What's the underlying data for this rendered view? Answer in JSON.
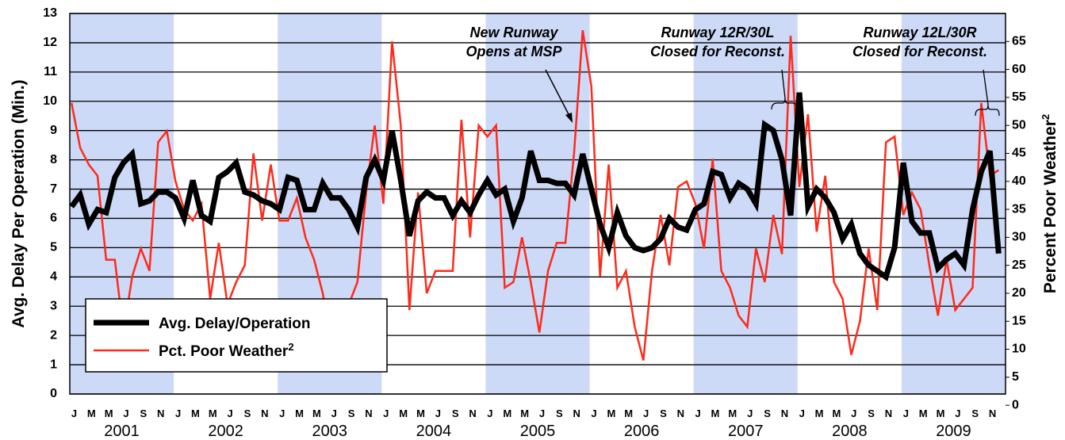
{
  "chart_data": {
    "type": "line",
    "y_label": "Avg. Delay Per Operation (Min.)",
    "y2_label": "Percent Poor Weather",
    "y2_label_sup": "2",
    "categories": [
      "J",
      null,
      "M",
      null,
      "M",
      null,
      "J",
      null,
      "S",
      null,
      "N",
      null,
      "J",
      null,
      "M",
      null,
      "M",
      null,
      "J",
      null,
      "S",
      null,
      "N",
      null,
      "J",
      null,
      "M",
      null,
      "M",
      null,
      "J",
      null,
      "S",
      null,
      "N",
      null,
      "J",
      null,
      "M",
      null,
      "M",
      null,
      "J",
      null,
      "S",
      null,
      "N",
      null,
      "J",
      null,
      "M",
      null,
      "M",
      null,
      "J",
      null,
      "S",
      null,
      "N",
      null,
      "J",
      null,
      "M",
      null,
      "M",
      null,
      "J",
      null,
      "S",
      null,
      "N",
      null,
      "J",
      null,
      "M",
      null,
      "M",
      null,
      "J",
      null,
      "S",
      null,
      "N",
      null,
      "J",
      null,
      "M",
      null,
      "M",
      null,
      "J",
      null,
      "S",
      null,
      "N",
      null,
      "J",
      null,
      "M",
      null,
      "M",
      null,
      "J",
      null,
      "S",
      null,
      "N",
      null
    ],
    "years": [
      "2001",
      "2002",
      "2003",
      "2004",
      "2005",
      "2006",
      "2007",
      "2008",
      "2009"
    ],
    "shade_color": "#ccd9f7",
    "ylim": [
      0,
      13
    ],
    "yticks": [
      0,
      1,
      2,
      3,
      4,
      5,
      6,
      7,
      8,
      9,
      10,
      11,
      12,
      13
    ],
    "y2lim": [
      2,
      70
    ],
    "y2ticks": [
      0,
      5,
      10,
      15,
      20,
      25,
      30,
      35,
      40,
      45,
      50,
      55,
      60,
      65
    ],
    "grid": true,
    "legend": "lower-left",
    "series": [
      {
        "name": "Avg. Delay/Operation",
        "color": "#000000",
        "values": [
          6.4,
          6.8,
          5.8,
          6.3,
          6.2,
          7.4,
          7.9,
          8.2,
          6.5,
          6.6,
          6.9,
          6.9,
          6.7,
          6.0,
          7.3,
          6.1,
          5.9,
          7.4,
          7.6,
          7.9,
          6.9,
          6.8,
          6.6,
          6.5,
          6.3,
          7.4,
          7.3,
          6.3,
          6.3,
          7.2,
          6.7,
          6.7,
          6.3,
          5.7,
          7.4,
          8.0,
          7.3,
          9.0,
          7.3,
          5.4,
          6.6,
          6.9,
          6.7,
          6.7,
          6.1,
          6.6,
          6.2,
          6.8,
          7.3,
          6.8,
          7.0,
          5.9,
          6.7,
          8.3,
          7.3,
          7.3,
          7.2,
          7.2,
          6.8,
          8.2,
          7.0,
          5.8,
          5.0,
          6.2,
          5.4,
          5.0,
          4.9,
          5.0,
          5.3,
          6.0,
          5.7,
          5.6,
          6.3,
          6.5,
          7.6,
          7.5,
          6.7,
          7.2,
          7.0,
          6.5,
          9.2,
          9.0,
          8.0,
          6.1,
          10.3,
          6.4,
          7.0,
          6.7,
          6.2,
          5.3,
          5.8,
          4.8,
          4.4,
          4.2,
          4.0,
          5.0,
          7.9,
          5.9,
          5.5,
          5.5,
          4.3,
          4.6,
          4.8,
          4.4,
          6.3,
          7.6,
          8.3,
          4.8
        ]
      },
      {
        "name": "Pct. Poor Weather",
        "name_sup": "2",
        "color": "#ff2a1a",
        "axis": "y2",
        "values": [
          54,
          46,
          43,
          41,
          26,
          26,
          13,
          23,
          28,
          24,
          47,
          49,
          40,
          35,
          33,
          36,
          19,
          29,
          18,
          22,
          25,
          45,
          33,
          43,
          33,
          33,
          37,
          30,
          26,
          20,
          11,
          13,
          18,
          22,
          38,
          50,
          36,
          65,
          50,
          17,
          38,
          20,
          24,
          24,
          24,
          51,
          30,
          50,
          48,
          50,
          21,
          22,
          30,
          22,
          13,
          24,
          29,
          29,
          45,
          67,
          57,
          23,
          43,
          21,
          24,
          14,
          8,
          24,
          34,
          25,
          39,
          40,
          36,
          28,
          44,
          24,
          21,
          16,
          14,
          28,
          22,
          34,
          27,
          66,
          39,
          52,
          31,
          41,
          22,
          19,
          9,
          15,
          28,
          17,
          47,
          48,
          34,
          38,
          35,
          25,
          16,
          26,
          17,
          19,
          21,
          54,
          41,
          42
        ]
      }
    ],
    "annotations": [
      {
        "lines": [
          "New Runway",
          "Opens at MSP"
        ]
      },
      {
        "lines": [
          "Runway 12R/30L",
          "Closed for Reconst."
        ]
      },
      {
        "lines": [
          "Runway 12L/30R",
          "Closed for Reconst."
        ]
      }
    ]
  }
}
